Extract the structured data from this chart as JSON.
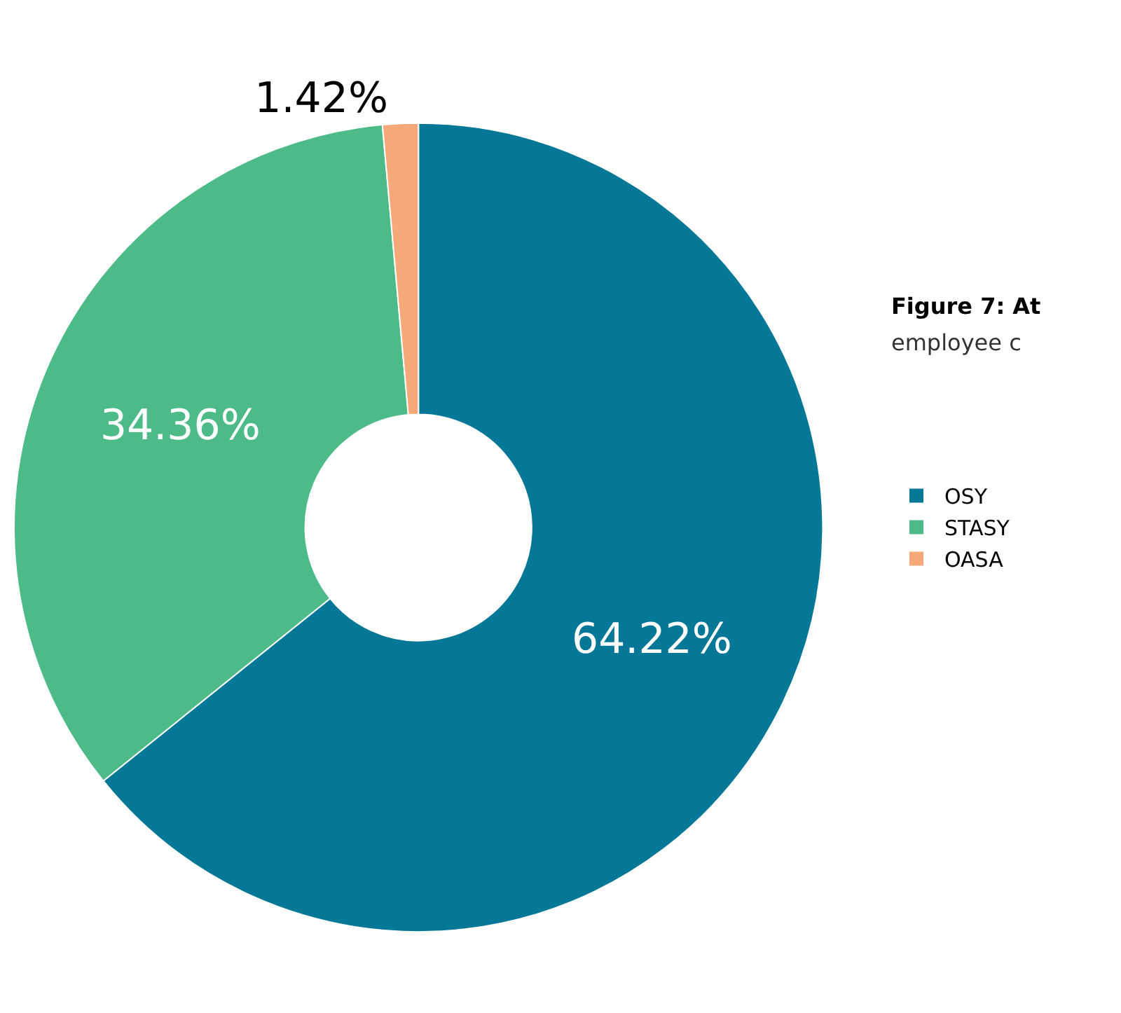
{
  "chart_data": {
    "type": "donut",
    "title": "Figure 7: At",
    "subtitle": "employee c",
    "categories": [
      "OSY",
      "STASY",
      "OASA"
    ],
    "values": [
      64.22,
      34.36,
      1.42
    ],
    "colors": [
      "#047896",
      "#4cbb88",
      "#f5a878"
    ],
    "value_labels": [
      "64.22%",
      "34.36%",
      "1.42%"
    ],
    "legend": "right"
  }
}
